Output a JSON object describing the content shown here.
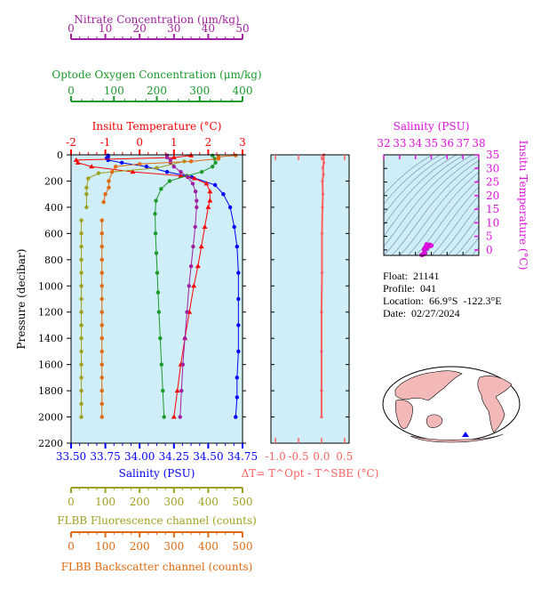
{
  "info": {
    "float": "Float:  21141",
    "profile": "Profile:  041",
    "location": "Location:  66.9°S  -122.3°E",
    "date": "Date:  02/27/2024"
  },
  "colors": {
    "plot_bg": "#cfeef8",
    "salinity": "#0000ff",
    "temperature": "#ff0000",
    "oxygen": "#1a9a2a",
    "nitrate": "#a020a0",
    "fluorescence": "#a0a020",
    "backscatter": "#e06a10",
    "dt": "#ff6060",
    "inset_axis": "#e010e0"
  },
  "chart_data": [
    {
      "type": "line",
      "title": "",
      "ylabel": "Pressure (decibar)",
      "ylim": [
        2200,
        0
      ],
      "yticks": [
        0,
        200,
        400,
        600,
        800,
        1000,
        1200,
        1400,
        1600,
        1800,
        2000,
        2200
      ],
      "grid": false,
      "axes": [
        {
          "key": "salinity",
          "label": "Salinity (PSU)",
          "range": [
            33.5,
            34.75
          ],
          "ticks": [
            "33.50",
            "33.75",
            "34.00",
            "34.25",
            "34.50",
            "34.75"
          ]
        },
        {
          "key": "temperature",
          "label": "Insitu Temperature (°C)",
          "range": [
            -2,
            3
          ],
          "ticks": [
            "-2",
            "-1",
            "0",
            "1",
            "2",
            "3"
          ]
        },
        {
          "key": "oxygen",
          "label": "Optode Oxygen Concentration (μm/kg)",
          "range": [
            0,
            400
          ],
          "ticks": [
            "0",
            "100",
            "200",
            "300",
            "400"
          ]
        },
        {
          "key": "nitrate",
          "label": "Nitrate Concentration (μm/kg)",
          "range": [
            0,
            50
          ],
          "ticks": [
            "0",
            "10",
            "20",
            "30",
            "40",
            "50"
          ]
        },
        {
          "key": "fluorescence",
          "label": "FLBB Fluorescence channel (counts)",
          "range": [
            0,
            500
          ],
          "ticks": [
            "0",
            "100",
            "200",
            "300",
            "400",
            "500"
          ]
        },
        {
          "key": "backscatter",
          "label": "FLBB Backscatter channel (counts)",
          "range": [
            0,
            500
          ],
          "ticks": [
            "0",
            "100",
            "200",
            "300",
            "400",
            "500"
          ]
        }
      ],
      "series": [
        {
          "key": "salinity",
          "marker": "circle",
          "points": [
            [
              33.77,
              5
            ],
            [
              33.77,
              15
            ],
            [
              33.76,
              25
            ],
            [
              33.77,
              40
            ],
            [
              33.87,
              60
            ],
            [
              34.05,
              90
            ],
            [
              34.2,
              130
            ],
            [
              34.38,
              170
            ],
            [
              34.55,
              230
            ],
            [
              34.61,
              300
            ],
            [
              34.66,
              400
            ],
            [
              34.69,
              550
            ],
            [
              34.71,
              700
            ],
            [
              34.72,
              900
            ],
            [
              34.72,
              1100
            ],
            [
              34.72,
              1300
            ],
            [
              34.72,
              1500
            ],
            [
              34.71,
              1700
            ],
            [
              34.71,
              1850
            ],
            [
              34.7,
              2000
            ]
          ]
        },
        {
          "key": "temperature",
          "marker": "triangle",
          "points": [
            [
              1.5,
              5
            ],
            [
              1.0,
              20
            ],
            [
              -1.85,
              40
            ],
            [
              -1.8,
              60
            ],
            [
              -1.4,
              90
            ],
            [
              -0.2,
              130
            ],
            [
              1.2,
              160
            ],
            [
              1.6,
              180
            ],
            [
              1.95,
              220
            ],
            [
              2.05,
              280
            ],
            [
              2.05,
              350
            ],
            [
              2.0,
              400
            ],
            [
              1.9,
              550
            ],
            [
              1.8,
              700
            ],
            [
              1.7,
              850
            ],
            [
              1.58,
              1000
            ],
            [
              1.45,
              1200
            ],
            [
              1.32,
              1400
            ],
            [
              1.2,
              1600
            ],
            [
              1.1,
              1800
            ],
            [
              1.0,
              2000
            ]
          ]
        },
        {
          "key": "oxygen",
          "marker": "circle",
          "points": [
            [
              330,
              5
            ],
            [
              335,
              30
            ],
            [
              337,
              60
            ],
            [
              330,
              90
            ],
            [
              305,
              130
            ],
            [
              270,
              160
            ],
            [
              230,
              200
            ],
            [
              210,
              260
            ],
            [
              198,
              350
            ],
            [
              196,
              450
            ],
            [
              197,
              600
            ],
            [
              199,
              750
            ],
            [
              201,
              900
            ],
            [
              203,
              1050
            ],
            [
              205,
              1200
            ],
            [
              208,
              1400
            ],
            [
              211,
              1600
            ],
            [
              214,
              1800
            ],
            [
              217,
              2000
            ]
          ]
        },
        {
          "key": "nitrate",
          "marker": "circle",
          "points": [
            [
              28,
              5
            ],
            [
              28,
              20
            ],
            [
              29,
              40
            ],
            [
              29,
              60
            ],
            [
              30,
              90
            ],
            [
              32,
              130
            ],
            [
              34,
              170
            ],
            [
              35.5,
              220
            ],
            [
              36.3,
              280
            ],
            [
              36.6,
              350
            ],
            [
              36.6,
              400
            ],
            [
              36.2,
              550
            ],
            [
              35.6,
              700
            ],
            [
              35,
              850
            ],
            [
              34.4,
              1000
            ],
            [
              33.8,
              1200
            ],
            [
              33.2,
              1400
            ],
            [
              32.6,
              1600
            ],
            [
              32.2,
              1800
            ],
            [
              31.8,
              2000
            ]
          ]
        },
        {
          "key": "fluorescence",
          "marker": "circle",
          "points": [
            [
              330,
              50
            ],
            [
              250,
              100
            ],
            [
              80,
              140
            ],
            [
              50,
              180
            ],
            [
              45,
              250
            ],
            [
              45,
              300
            ],
            [
              45,
              400
            ]
          ]
        },
        {
          "key": "fluorescence",
          "marker": "circle",
          "points": [
            [
              30,
              500
            ],
            [
              30,
              600
            ],
            [
              30,
              700
            ],
            [
              30,
              800
            ],
            [
              30,
              900
            ],
            [
              30,
              1000
            ],
            [
              30,
              1100
            ],
            [
              30,
              1200
            ],
            [
              30,
              1300
            ],
            [
              30,
              1400
            ],
            [
              30,
              1500
            ],
            [
              30,
              1600
            ],
            [
              30,
              1700
            ],
            [
              30,
              1800
            ],
            [
              30,
              1900
            ],
            [
              30,
              2000
            ]
          ]
        },
        {
          "key": "backscatter",
          "marker": "circle",
          "points": [
            [
              480,
              5
            ],
            [
              430,
              15
            ],
            [
              430,
              30
            ],
            [
              350,
              50
            ],
            [
              200,
              70
            ],
            [
              130,
              90
            ],
            [
              120,
              130
            ],
            [
              110,
              200
            ],
            [
              110,
              250
            ],
            [
              100,
              300
            ],
            [
              95,
              360
            ]
          ]
        },
        {
          "key": "backscatter",
          "marker": "circle",
          "points": [
            [
              90,
              500
            ],
            [
              90,
              600
            ],
            [
              90,
              700
            ],
            [
              90,
              800
            ],
            [
              90,
              900
            ],
            [
              90,
              1000
            ],
            [
              90,
              1100
            ],
            [
              90,
              1200
            ],
            [
              90,
              1300
            ],
            [
              90,
              1400
            ],
            [
              90,
              1500
            ],
            [
              90,
              1600
            ],
            [
              90,
              1700
            ],
            [
              90,
              1800
            ],
            [
              90,
              1900
            ],
            [
              90,
              2000
            ]
          ]
        }
      ]
    },
    {
      "type": "line",
      "xlabel": "ΔT= T^Opt - T^SBE (°C)",
      "xlim": [
        -1.1,
        0.6
      ],
      "xticks": [
        "-1.0",
        "-0.5",
        "0.0",
        "0.5"
      ],
      "ylim": [
        2200,
        0
      ],
      "series": [
        {
          "key": "dt",
          "points": [
            [
              0.05,
              0
            ],
            [
              0.04,
              30
            ],
            [
              0.05,
              60
            ],
            [
              0.03,
              100
            ],
            [
              0.04,
              150
            ],
            [
              0.02,
              200
            ],
            [
              0.03,
              300
            ],
            [
              0.02,
              400
            ],
            [
              0.01,
              600
            ],
            [
              0.01,
              900
            ],
            [
              0.0,
              1200
            ],
            [
              0.0,
              1500
            ],
            [
              0.0,
              1800
            ],
            [
              0.0,
              2000
            ]
          ]
        }
      ]
    },
    {
      "type": "scatter",
      "xlabel": "Salinity (PSU)",
      "ylabel": "Insitu Temperature (°C)",
      "xlim": [
        32,
        38
      ],
      "ylim": [
        -2,
        35
      ],
      "xticks": [
        "32",
        "33",
        "34",
        "35",
        "36",
        "37",
        "38"
      ],
      "yticks": [
        "0",
        "5",
        "10",
        "15",
        "20",
        "25",
        "30",
        "35"
      ],
      "points": [
        [
          34.5,
          -1.6
        ],
        [
          34.6,
          -1.2
        ],
        [
          34.7,
          0.5
        ],
        [
          34.8,
          1.3
        ],
        [
          34.9,
          1.9
        ],
        [
          35.0,
          1.6
        ],
        [
          34.7,
          2.0
        ],
        [
          34.6,
          0.8
        ],
        [
          34.4,
          -1.8
        ],
        [
          34.55,
          0.0
        ]
      ]
    },
    {
      "type": "other",
      "description_none": ""
    }
  ]
}
